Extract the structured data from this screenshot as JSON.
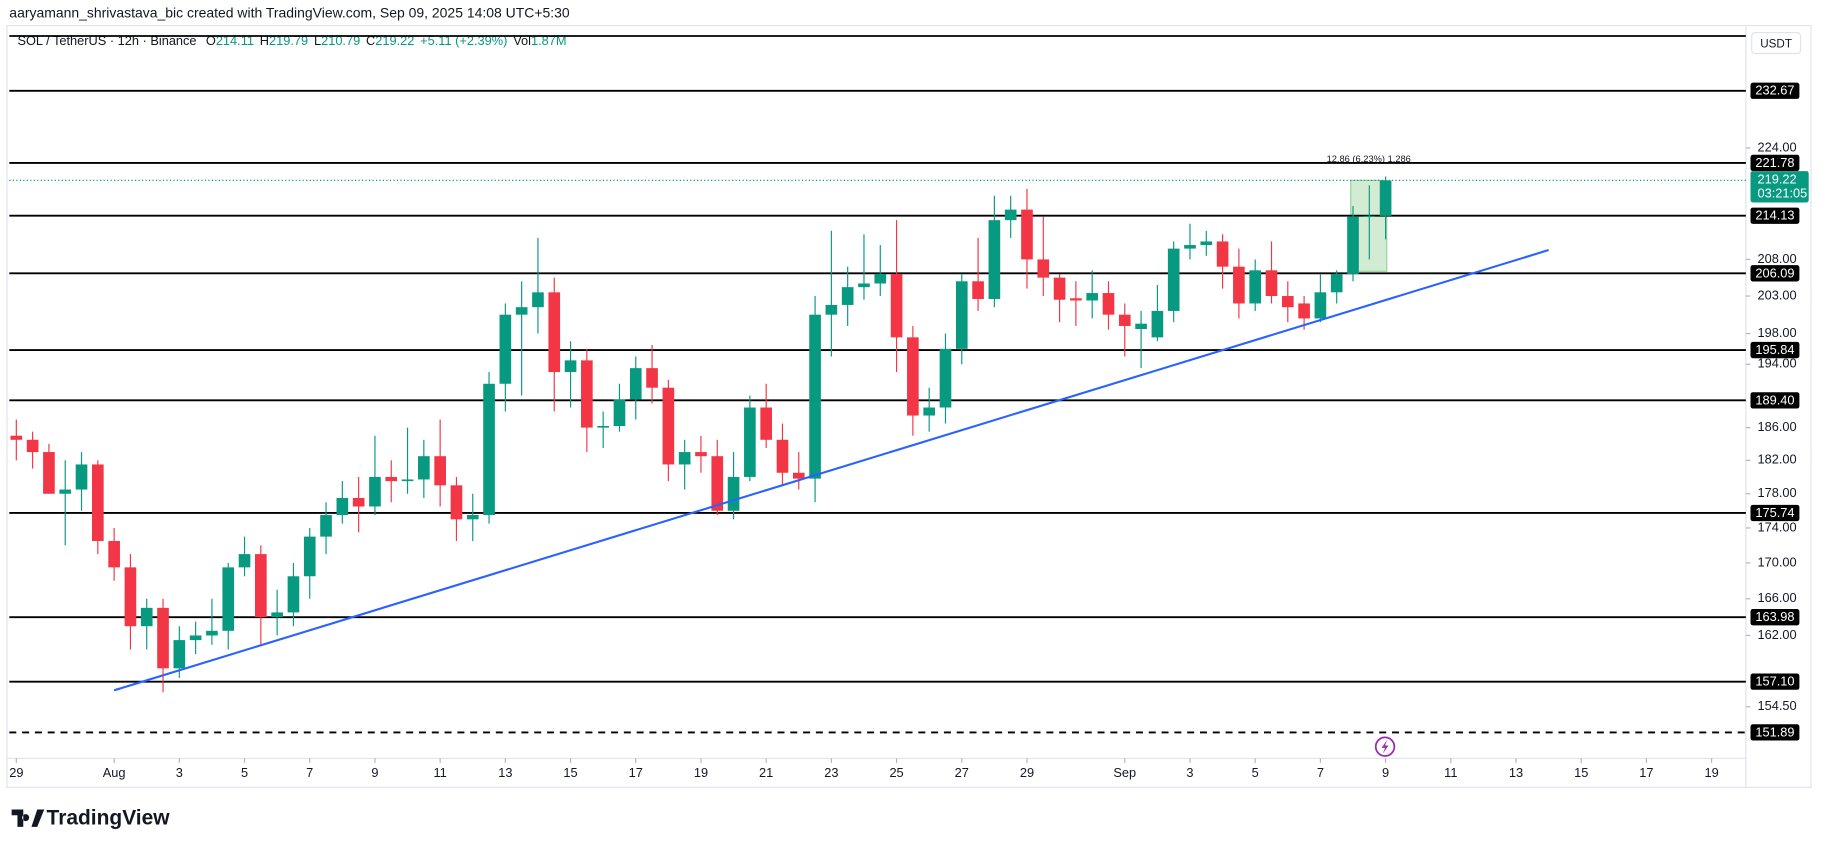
{
  "credit": "aaryamann_shrivastava_bic created with TradingView.com, Sep 09, 2025 14:08 UTC+5:30",
  "brand": "TradingView",
  "chart_data": {
    "type": "candlestick",
    "legend": {
      "symbol": "SOL / TetherUS · 12h · Binance",
      "items": [
        {
          "key": "O",
          "value": "214.11"
        },
        {
          "key": "H",
          "value": "219.79"
        },
        {
          "key": "L",
          "value": "210.79"
        },
        {
          "key": "C",
          "value": "219.22"
        }
      ],
      "change": "+5.11 (+2.39%)",
      "volume_key": "Vol",
      "volume": "1.87M"
    },
    "up_color": "#089981",
    "down_color": "#f23645",
    "open": [
      185,
      184.5,
      183,
      178,
      178.5,
      181.5,
      172.5,
      169.5,
      163,
      165,
      158.5,
      161.5,
      162,
      162.5,
      169.5,
      171,
      164,
      164.5,
      168.5,
      173,
      175.5,
      177.5,
      176.5,
      180,
      179.5,
      179.7,
      182.5,
      179,
      175,
      175.5,
      191.5,
      200.5,
      201.5,
      203.5,
      193,
      194.5,
      186,
      186.2,
      189.5,
      193.5,
      191,
      181.5,
      183,
      182.5,
      176,
      180,
      188.5,
      184.5,
      180.5,
      179.8,
      200.5,
      201.8,
      204.2,
      204.7,
      206,
      197.5,
      187.5,
      188.5,
      196,
      205,
      202.6,
      213.5,
      215,
      208,
      205.5,
      202.7,
      202.4,
      203.4,
      200.5,
      198.6,
      197.5,
      201,
      209.5,
      210,
      210.5,
      207,
      202,
      206.5,
      203,
      202,
      200,
      203.5,
      206,
      214,
      214.11
    ],
    "high": [
      187,
      185.5,
      184,
      182,
      183,
      182,
      174,
      171,
      166,
      166,
      163,
      163.5,
      166,
      170,
      173,
      172,
      167,
      170,
      174,
      177,
      179.5,
      180,
      185,
      182,
      186,
      184.5,
      187,
      180,
      178,
      193,
      202,
      205,
      211,
      205.5,
      197,
      196,
      188,
      191.5,
      195,
      196.5,
      192,
      184.5,
      185,
      184.5,
      183,
      190,
      191.5,
      186.5,
      183,
      203,
      212,
      207,
      211.5,
      210,
      213.5,
      199,
      191,
      198,
      206,
      211,
      217,
      217,
      218,
      214,
      206,
      205,
      206.5,
      205,
      202,
      201,
      204.5,
      210.5,
      213,
      212,
      211.5,
      209.5,
      208,
      210.5,
      205,
      203,
      206,
      206.5,
      215.5,
      218.5,
      219.79
    ],
    "low": [
      182,
      181,
      178,
      172,
      176,
      171,
      168,
      160.5,
      160.5,
      156,
      157.5,
      160,
      161,
      160.5,
      168.5,
      161,
      162,
      163,
      166,
      171,
      174.5,
      173.5,
      175.5,
      177,
      178,
      177.5,
      176.5,
      172.5,
      172.5,
      174.5,
      188,
      190,
      198,
      188,
      188.5,
      183,
      183.5,
      185.5,
      187,
      189,
      179.5,
      178.5,
      180.5,
      175.5,
      175,
      179.5,
      183.5,
      179,
      178.5,
      177,
      195,
      199,
      202.5,
      203,
      193,
      185,
      185.5,
      186.5,
      194,
      201,
      201.5,
      211,
      204,
      203,
      199.5,
      199,
      200,
      198.5,
      195,
      193.5,
      197,
      199.5,
      208,
      208.5,
      204,
      200,
      201,
      202,
      199.5,
      198.5,
      199.5,
      202,
      205,
      208,
      210.79
    ],
    "close": [
      184.5,
      183,
      178,
      178.5,
      181.5,
      172.5,
      169.5,
      163,
      165,
      158.5,
      161.5,
      162,
      162.5,
      169.5,
      171,
      164,
      164.5,
      168.5,
      173,
      175.5,
      177.5,
      176.5,
      180,
      179.5,
      179.7,
      182.5,
      179,
      175,
      175.5,
      191.5,
      200.5,
      201.5,
      203.5,
      193,
      194.5,
      186,
      186.2,
      189.5,
      193.5,
      191,
      181.5,
      183,
      182.5,
      176,
      180,
      188.5,
      184.5,
      180.5,
      179.8,
      200.5,
      201.8,
      204.2,
      204.7,
      206,
      197.5,
      187.5,
      188.5,
      196,
      205,
      202.6,
      213.5,
      215,
      208,
      205.5,
      202.5,
      202.4,
      203.4,
      200.5,
      199,
      199.3,
      201,
      209.5,
      210,
      210.5,
      207,
      202,
      206.5,
      203,
      201.5,
      200,
      203.5,
      206,
      214,
      214.11,
      219.22
    ],
    "xlim": [
      -0.43,
      106.1
    ],
    "xticks": [
      {
        "value": 0,
        "label": "29"
      },
      {
        "value": 6,
        "label": "Aug"
      },
      {
        "value": 10,
        "label": "3"
      },
      {
        "value": 14,
        "label": "5"
      },
      {
        "value": 18,
        "label": "7"
      },
      {
        "value": 22,
        "label": "9"
      },
      {
        "value": 26,
        "label": "11"
      },
      {
        "value": 30,
        "label": "13"
      },
      {
        "value": 34,
        "label": "15"
      },
      {
        "value": 38,
        "label": "17"
      },
      {
        "value": 42,
        "label": "19"
      },
      {
        "value": 46,
        "label": "21"
      },
      {
        "value": 50,
        "label": "23"
      },
      {
        "value": 54,
        "label": "25"
      },
      {
        "value": 58,
        "label": "27"
      },
      {
        "value": 62,
        "label": "29"
      },
      {
        "value": 68,
        "label": "Sep"
      },
      {
        "value": 72,
        "label": "3"
      },
      {
        "value": 76,
        "label": "5"
      },
      {
        "value": 80,
        "label": "7"
      },
      {
        "value": 84,
        "label": "9"
      },
      {
        "value": 88,
        "label": "11"
      },
      {
        "value": 92,
        "label": "13"
      },
      {
        "value": 96,
        "label": "15"
      },
      {
        "value": 100,
        "label": "17"
      },
      {
        "value": 104,
        "label": "19"
      }
    ],
    "ylim": [
      149.3,
      242.6
    ],
    "log_scale": true,
    "y_unit": "USDT",
    "yticks": [
      {
        "value": 224,
        "label": "224.00"
      },
      {
        "value": 208,
        "label": "208.00"
      },
      {
        "value": 203,
        "label": "203.00"
      },
      {
        "value": 198,
        "label": "198.00"
      },
      {
        "value": 194,
        "label": "194.00"
      },
      {
        "value": 186,
        "label": "186.00"
      },
      {
        "value": 182,
        "label": "182.00"
      },
      {
        "value": 178,
        "label": "178.00"
      },
      {
        "value": 174,
        "label": "174.00"
      },
      {
        "value": 170,
        "label": "170.00"
      },
      {
        "value": 166,
        "label": "166.00"
      },
      {
        "value": 162,
        "label": "162.00"
      },
      {
        "value": 154.5,
        "label": "154.50"
      }
    ],
    "levels": [
      {
        "value": 241.3,
        "label": null
      },
      232.67,
      221.78,
      214.13,
      206.09,
      195.84,
      {
        "value": 189.4,
        "label": "189.40"
      },
      175.74,
      163.98,
      {
        "value": 157.1,
        "label": "157.10"
      },
      {
        "value": 151.89,
        "label": "151.89",
        "style": "dashed"
      }
    ],
    "level_color": "#000000",
    "trendline": {
      "x": [
        6,
        94
      ],
      "y": [
        156.2,
        209.3
      ],
      "color": "#2962ff"
    },
    "last_price": 219.22,
    "countdown": "03:21:05",
    "measure": {
      "label": "12.86 (6.23%) 1,286",
      "x": [
        82,
        84
      ],
      "y": [
        206.36,
        219.22
      ]
    }
  }
}
